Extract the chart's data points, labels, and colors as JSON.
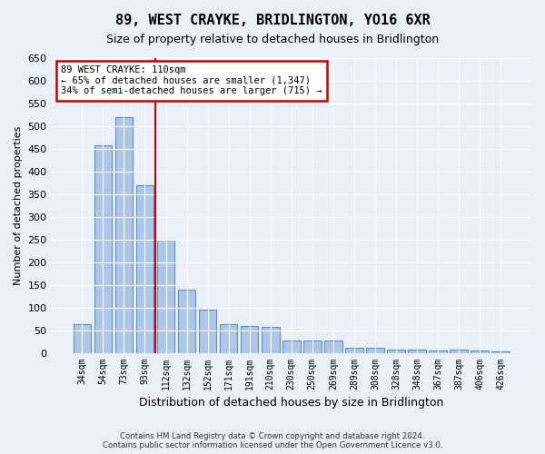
{
  "title": "89, WEST CRAYKE, BRIDLINGTON, YO16 6XR",
  "subtitle": "Size of property relative to detached houses in Bridlington",
  "xlabel": "Distribution of detached houses by size in Bridlington",
  "ylabel": "Number of detached properties",
  "bar_labels": [
    "34sqm",
    "54sqm",
    "73sqm",
    "93sqm",
    "112sqm",
    "132sqm",
    "152sqm",
    "171sqm",
    "191sqm",
    "210sqm",
    "230sqm",
    "250sqm",
    "269sqm",
    "289sqm",
    "308sqm",
    "328sqm",
    "348sqm",
    "367sqm",
    "387sqm",
    "406sqm",
    "426sqm"
  ],
  "bar_heights": [
    63,
    458,
    520,
    370,
    250,
    140,
    95,
    63,
    60,
    57,
    27,
    27,
    27,
    12,
    12,
    8,
    7,
    5,
    7,
    5,
    4
  ],
  "bar_color": "#aec6e8",
  "bar_edge_color": "#5a8fc2",
  "vline_x_index": 4,
  "annotation_text_line1": "89 WEST CRAYKE: 110sqm",
  "annotation_text_line2": "← 65% of detached houses are smaller (1,347)",
  "annotation_text_line3": "34% of semi-detached houses are larger (715) →",
  "annotation_box_color": "#ffffff",
  "annotation_box_edge_color": "#cc0000",
  "vline_color": "#cc0000",
  "ylim": [
    0,
    650
  ],
  "yticks": [
    0,
    50,
    100,
    150,
    200,
    250,
    300,
    350,
    400,
    450,
    500,
    550,
    600,
    650
  ],
  "footer_line1": "Contains HM Land Registry data © Crown copyright and database right 2024.",
  "footer_line2": "Contains public sector information licensed under the Open Government Licence v3.0.",
  "bg_color": "#eaf0f8",
  "plot_bg_color": "#eaf0f8"
}
